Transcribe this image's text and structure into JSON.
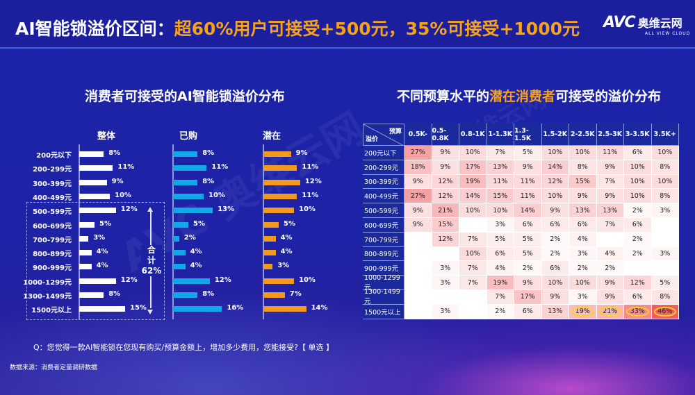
{
  "header": {
    "title_prefix": "AI智能锁溢价区间：",
    "title_highlight": "超60%用户可接受+500元，35%可接受+1000元",
    "logo_mark": "AVC",
    "logo_cn": "奥维云网",
    "logo_en": "ALL VIEW CLOUD"
  },
  "watermark": "AVC 奥维云网",
  "left_title": "消费者可接受的AI智能锁溢价分布",
  "right_title_a": "不同预算水平的",
  "right_title_hl": "潜在消费者",
  "right_title_b": "可接受的溢价分布",
  "sum_label_1": "合",
  "sum_label_2": "计",
  "sum_value": "62%",
  "question": "Q：您觉得一款AI智能锁在您现有购买/预算金额上，增加多少费用，您能接受?【 单选 】",
  "source": "数据来源：消费者定量调研数据",
  "colors": {
    "overall": "#ffffff",
    "purchased": "#12a8e8",
    "potential": "#f39a1e",
    "accent": "#f7a21b",
    "heat": "#ee5a5f",
    "circle": "#ffd21a"
  },
  "chart_data": [
    {
      "type": "bar",
      "orientation": "horizontal",
      "title": "消费者可接受的AI智能锁溢价分布",
      "categories": [
        "200元以下",
        "200-299元",
        "300-399元",
        "400-499元",
        "500-599元",
        "600-699元",
        "700-799元",
        "800-899元",
        "900-999元",
        "1000-1299元",
        "1300-1499元",
        "1500元以上"
      ],
      "series": [
        {
          "name": "整体",
          "values": [
            8,
            11,
            9,
            10,
            12,
            5,
            3,
            4,
            4,
            12,
            8,
            15
          ]
        },
        {
          "name": "已购",
          "values": [
            8,
            11,
            8,
            10,
            13,
            5,
            2,
            4,
            4,
            12,
            8,
            16
          ]
        },
        {
          "name": "潜在",
          "values": [
            9,
            11,
            12,
            11,
            10,
            5,
            4,
            4,
            3,
            10,
            7,
            14
          ]
        }
      ],
      "unit": "%",
      "annotation": "合计62% (500元及以上)"
    },
    {
      "type": "heatmap",
      "title": "不同预算水平的潜在消费者可接受的溢价分布",
      "corner_top": "预算",
      "corner_bottom": "溢价",
      "columns": [
        "0.5K-",
        "0.5-0.8K",
        "0.8-1K",
        "1-1.3K",
        "1.3-1.5K",
        "1.5-2K",
        "2-2.5K",
        "2.5-3K",
        "3-3.5K",
        "3.5K+"
      ],
      "rows": [
        "200元以下",
        "200-299元",
        "300-399元",
        "400-499元",
        "500-599元",
        "600-699元",
        "700-799元",
        "800-899元",
        "900-999元",
        "1000-1299元",
        "1300-1499元",
        "1500元以上"
      ],
      "values": [
        [
          27,
          9,
          10,
          7,
          5,
          10,
          10,
          11,
          6,
          10
        ],
        [
          18,
          9,
          17,
          13,
          9,
          14,
          8,
          9,
          10,
          8
        ],
        [
          9,
          12,
          19,
          11,
          11,
          12,
          15,
          7,
          10,
          10
        ],
        [
          27,
          12,
          14,
          15,
          11,
          10,
          9,
          9,
          10,
          8
        ],
        [
          9,
          21,
          10,
          10,
          14,
          9,
          13,
          13,
          2,
          3
        ],
        [
          9,
          15,
          null,
          3,
          6,
          6,
          6,
          7,
          6,
          null
        ],
        [
          null,
          12,
          7,
          5,
          5,
          2,
          4,
          null,
          2,
          null
        ],
        [
          null,
          null,
          10,
          6,
          5,
          2,
          3,
          4,
          2,
          3
        ],
        [
          null,
          3,
          7,
          4,
          2,
          6,
          2,
          2,
          null,
          null
        ],
        [
          null,
          3,
          7,
          19,
          9,
          10,
          10,
          9,
          12,
          5
        ],
        [
          null,
          null,
          null,
          7,
          17,
          9,
          3,
          9,
          6,
          8
        ],
        [
          null,
          3,
          null,
          2,
          6,
          13,
          19,
          21,
          33,
          46
        ]
      ],
      "highlighted": [
        [
          11,
          6
        ],
        [
          11,
          7
        ],
        [
          11,
          8
        ],
        [
          11,
          9
        ]
      ],
      "unit": "%"
    }
  ]
}
